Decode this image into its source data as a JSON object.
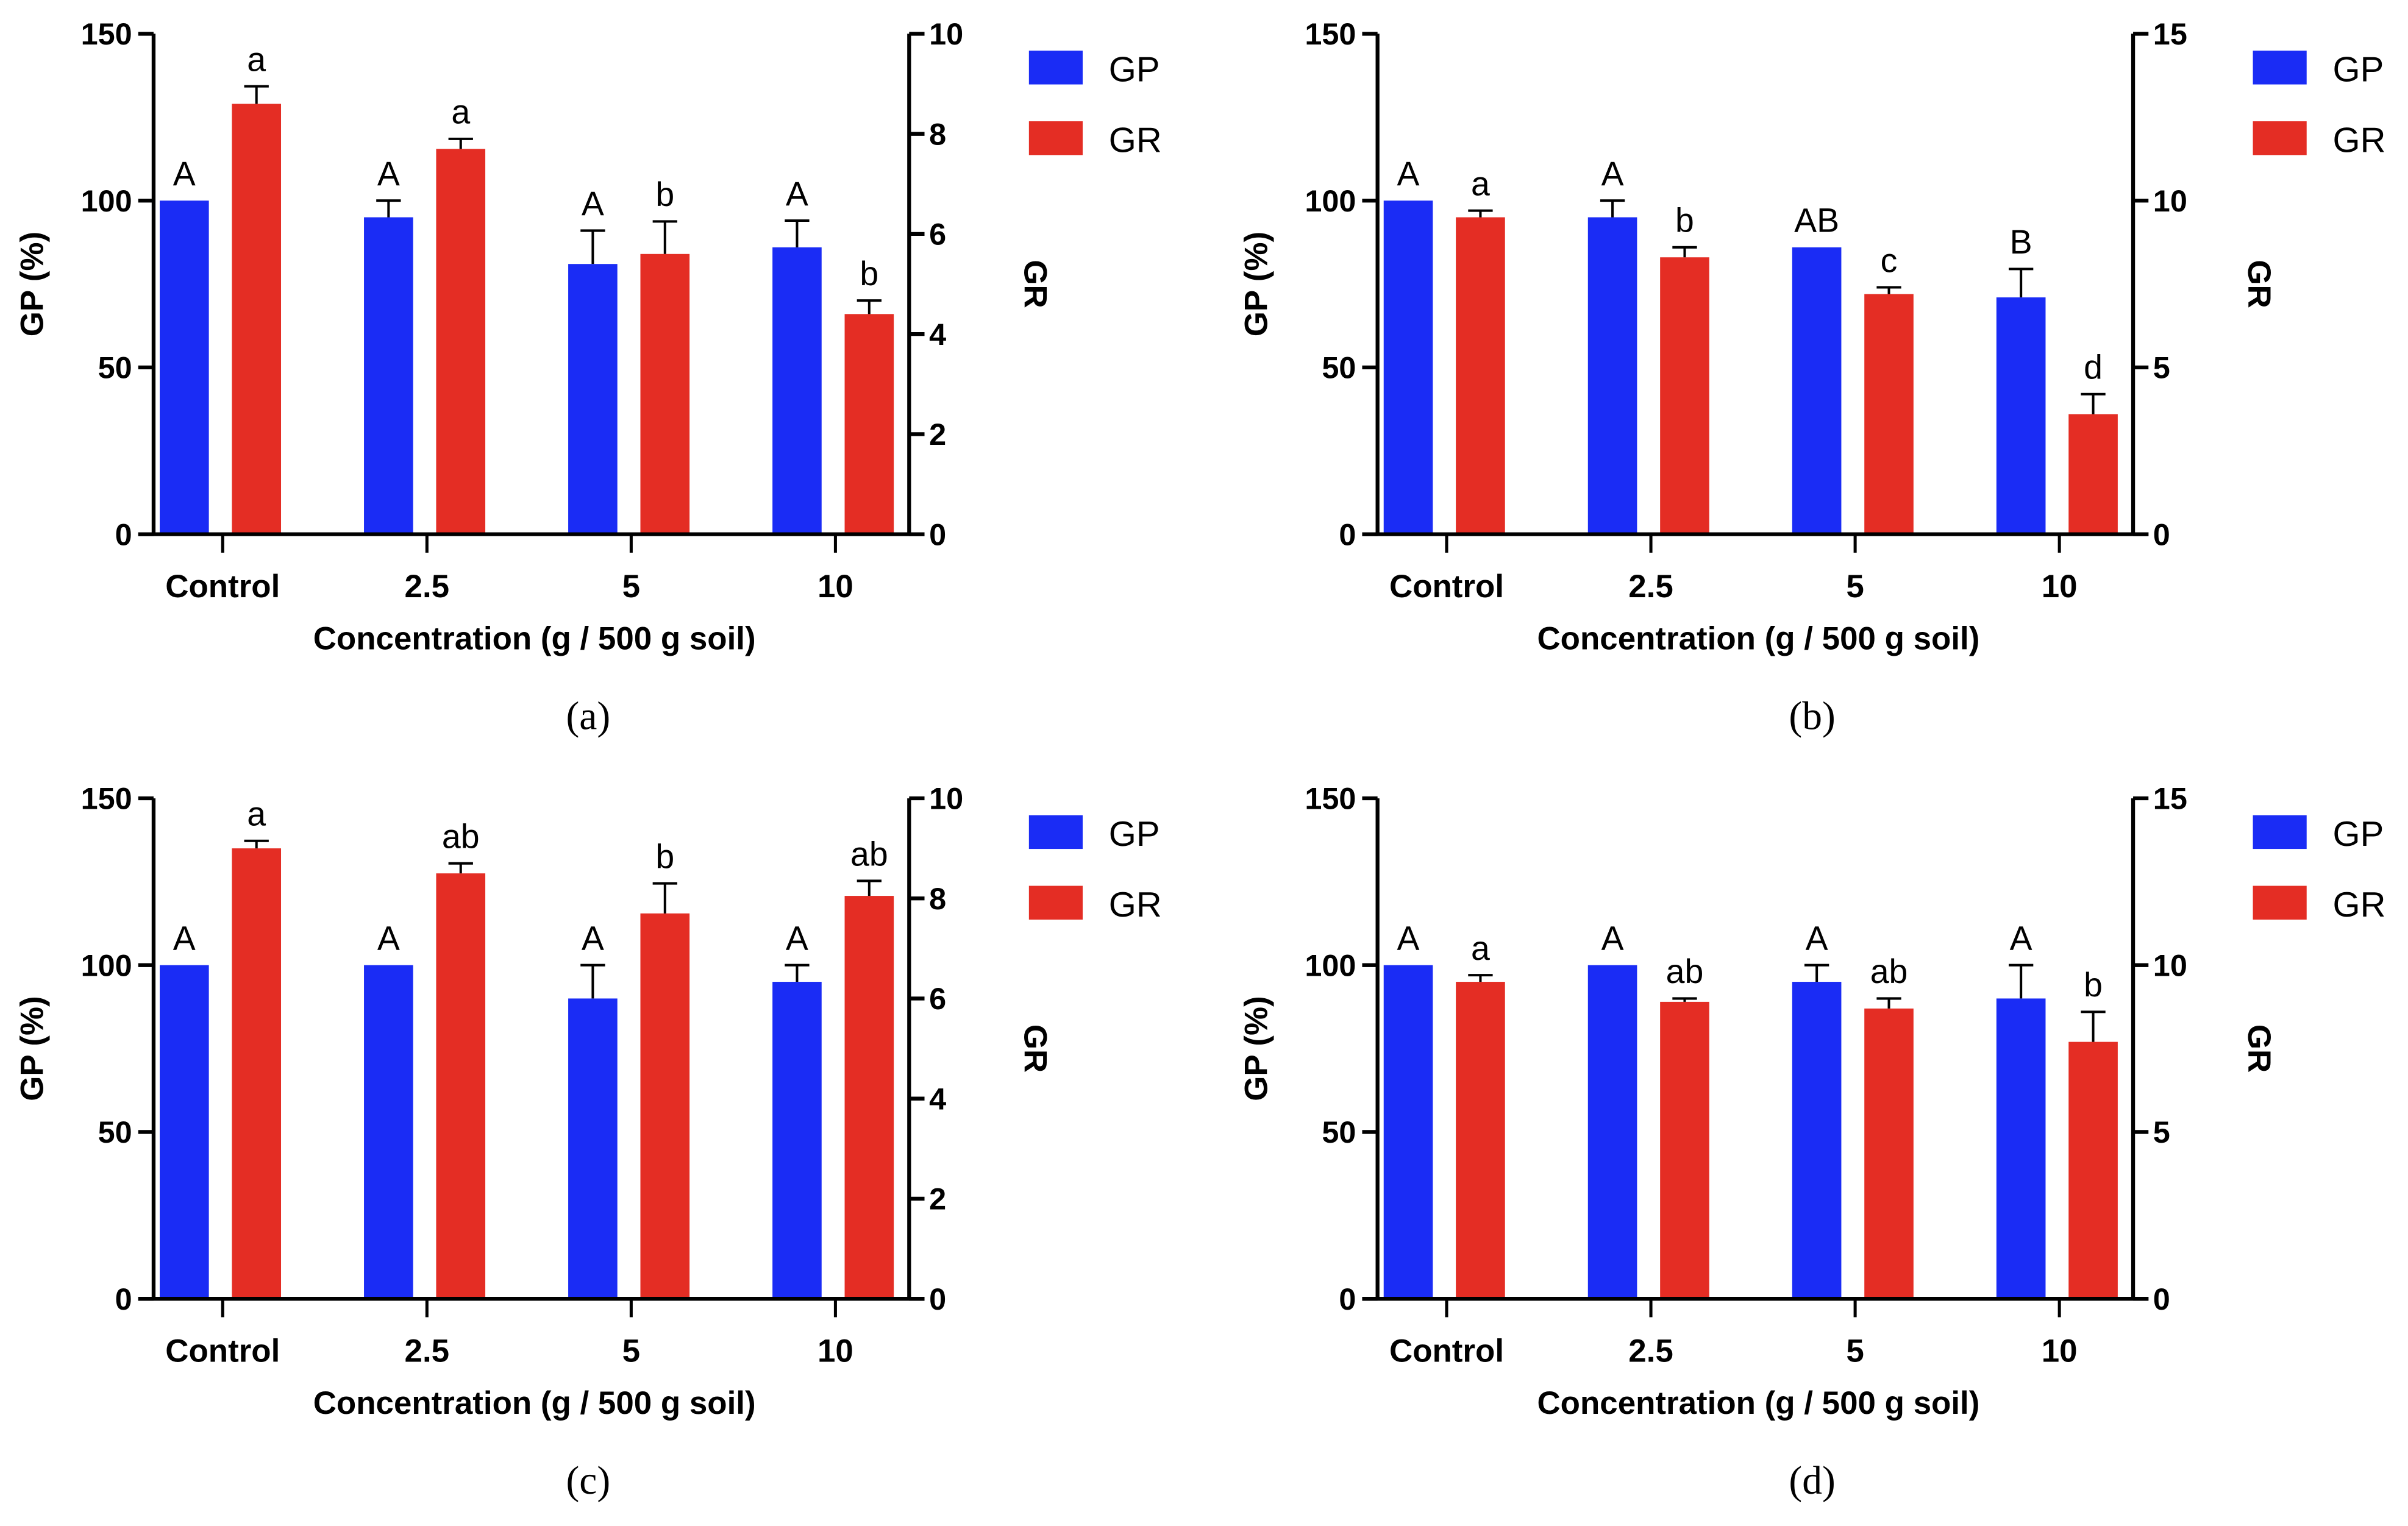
{
  "chart_data": [
    {
      "type": "bar",
      "caption": "(a)",
      "categories": [
        "Control",
        "2.5",
        "5",
        "10"
      ],
      "xlabel": "Concentration (g / 500 g soil)",
      "ylabel": "GP (%)",
      "ylabel_right": "GR",
      "ylim": [
        0,
        150
      ],
      "yticks": [
        0,
        50,
        100,
        150
      ],
      "ylim_right": [
        0,
        10
      ],
      "yticks_right": [
        0,
        2,
        4,
        6,
        8,
        10
      ],
      "legend": "top-right",
      "series": [
        {
          "name": "GP",
          "axis": "left",
          "color": "#1a2cf5",
          "values": [
            100,
            95,
            81,
            86
          ],
          "errors": [
            0,
            5,
            10,
            8
          ],
          "letters": [
            "A",
            "A",
            "A",
            "A"
          ]
        },
        {
          "name": "GR",
          "axis": "right",
          "color": "#e42d24",
          "values": [
            8.6,
            7.7,
            5.6,
            4.4
          ],
          "errors": [
            0.35,
            0.2,
            0.65,
            0.27
          ],
          "letters": [
            "a",
            "a",
            "b",
            "b"
          ]
        }
      ]
    },
    {
      "type": "bar",
      "caption": "(b)",
      "categories": [
        "Control",
        "2.5",
        "5",
        "10"
      ],
      "xlabel": "Concentration (g / 500 g soil)",
      "ylabel": "GP (%)",
      "ylabel_right": "GR",
      "ylim": [
        0,
        150
      ],
      "yticks": [
        0,
        50,
        100,
        150
      ],
      "ylim_right": [
        0,
        15
      ],
      "yticks_right": [
        0,
        5,
        10,
        15
      ],
      "legend": "top-right",
      "series": [
        {
          "name": "GP",
          "axis": "left",
          "color": "#1a2cf5",
          "values": [
            100,
            95,
            86,
            71
          ],
          "errors": [
            0,
            5,
            0,
            8.5
          ],
          "letters": [
            "A",
            "A",
            "AB",
            "B"
          ]
        },
        {
          "name": "GR",
          "axis": "right",
          "color": "#e42d24",
          "values": [
            9.5,
            8.3,
            7.2,
            3.6
          ],
          "errors": [
            0.2,
            0.3,
            0.2,
            0.6
          ],
          "letters": [
            "a",
            "b",
            "c",
            "d"
          ]
        }
      ]
    },
    {
      "type": "bar",
      "caption": "(c)",
      "categories": [
        "Control",
        "2.5",
        "5",
        "10"
      ],
      "xlabel": "Concentration (g / 500 g soil)",
      "ylabel": "GP (%)",
      "ylabel_right": "GR",
      "ylim": [
        0,
        150
      ],
      "yticks": [
        0,
        50,
        100,
        150
      ],
      "ylim_right": [
        0,
        10
      ],
      "yticks_right": [
        0,
        2,
        4,
        6,
        8,
        10
      ],
      "legend": "top-right",
      "series": [
        {
          "name": "GP",
          "axis": "left",
          "color": "#1a2cf5",
          "values": [
            100,
            100,
            90,
            95
          ],
          "errors": [
            0,
            0,
            10,
            5
          ],
          "letters": [
            "A",
            "A",
            "A",
            "A"
          ]
        },
        {
          "name": "GR",
          "axis": "right",
          "color": "#e42d24",
          "values": [
            9.0,
            8.5,
            7.7,
            8.05
          ],
          "errors": [
            0.15,
            0.2,
            0.6,
            0.3
          ],
          "letters": [
            "a",
            "ab",
            "b",
            "ab"
          ]
        }
      ]
    },
    {
      "type": "bar",
      "caption": "(d)",
      "categories": [
        "Control",
        "2.5",
        "5",
        "10"
      ],
      "xlabel": "Concentration (g / 500 g soil)",
      "ylabel": "GP (%)",
      "ylabel_right": "GR",
      "ylim": [
        0,
        150
      ],
      "yticks": [
        0,
        50,
        100,
        150
      ],
      "ylim_right": [
        0,
        15
      ],
      "yticks_right": [
        0,
        5,
        10,
        15
      ],
      "legend": "top-right",
      "series": [
        {
          "name": "GP",
          "axis": "left",
          "color": "#1a2cf5",
          "values": [
            100,
            100,
            95,
            90
          ],
          "errors": [
            0,
            0,
            5,
            10
          ],
          "letters": [
            "A",
            "A",
            "A",
            "A"
          ]
        },
        {
          "name": "GR",
          "axis": "right",
          "color": "#e42d24",
          "values": [
            9.5,
            8.9,
            8.7,
            7.7
          ],
          "errors": [
            0.2,
            0.1,
            0.3,
            0.9
          ],
          "letters": [
            "a",
            "ab",
            "ab",
            "b"
          ]
        }
      ]
    }
  ]
}
